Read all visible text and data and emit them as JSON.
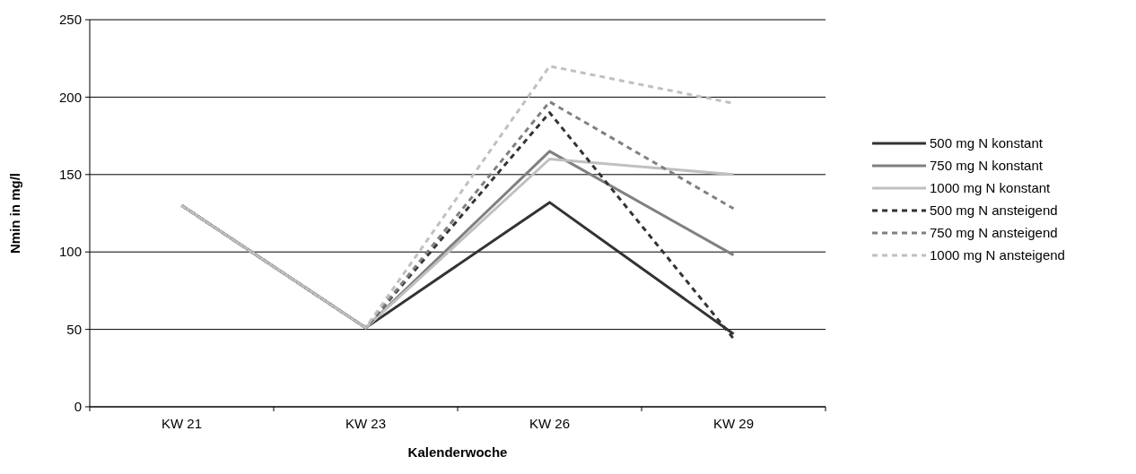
{
  "chart_data": {
    "type": "line",
    "xlabel": "Kalenderwoche",
    "ylabel": "Nmin in mg/l",
    "categories": [
      "KW 21",
      "KW 23",
      "KW 26",
      "KW 29"
    ],
    "ylim": [
      0,
      250
    ],
    "yticks": [
      0,
      50,
      100,
      150,
      200,
      250
    ],
    "grid": "y",
    "legend": "right",
    "marker": "none",
    "series": [
      {
        "name": "500 mg N konstant",
        "color": "#333333",
        "line_style": "solid",
        "values": [
          130,
          51,
          132,
          47
        ]
      },
      {
        "name": "750 mg N konstant",
        "color": "#808080",
        "line_style": "solid",
        "values": [
          130,
          51,
          165,
          98
        ]
      },
      {
        "name": "1000 mg N konstant",
        "color": "#c0c0c0",
        "line_style": "solid",
        "values": [
          130,
          51,
          160,
          150
        ]
      },
      {
        "name": "500 mg N ansteigend",
        "color": "#333333",
        "line_style": "dashed",
        "values": [
          130,
          51,
          190,
          44
        ]
      },
      {
        "name": "750 mg N ansteigend",
        "color": "#808080",
        "line_style": "dashed",
        "values": [
          130,
          51,
          197,
          128
        ]
      },
      {
        "name": "1000 mg N ansteigend",
        "color": "#c0c0c0",
        "line_style": "dashed",
        "values": [
          130,
          51,
          220,
          196
        ]
      }
    ]
  }
}
